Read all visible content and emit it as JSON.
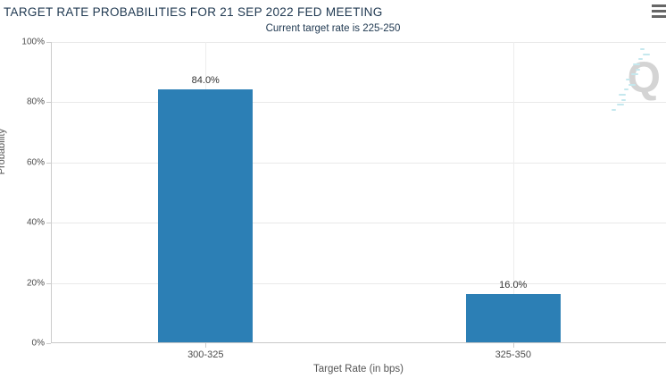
{
  "header": {
    "title": "TARGET RATE PROBABILITIES FOR 21 SEP 2022 FED MEETING",
    "subtitle": "Current target rate is 225-250"
  },
  "watermark": {
    "letter": "Q"
  },
  "theme": {
    "bar_color": "#2c7fb5",
    "title_color": "#213a52",
    "gridline_color": "#e9e9e9",
    "axis_line_color": "#cccccc"
  },
  "chart_data": {
    "type": "bar",
    "title": "TARGET RATE PROBABILITIES FOR 21 SEP 2022 FED MEETING",
    "subtitle": "Current target rate is 225-250",
    "categories": [
      "300-325",
      "325-350"
    ],
    "values": [
      84.0,
      16.0
    ],
    "value_labels": [
      "84.0%",
      "16.0%"
    ],
    "xlabel": "Target Rate (in bps)",
    "ylabel": "Probability",
    "ylim": [
      0,
      100
    ],
    "ytick_step": 20,
    "ytick_labels": [
      "0%",
      "20%",
      "40%",
      "60%",
      "80%",
      "100%"
    ],
    "grid": true,
    "legend": "none",
    "bar_color": "#2c7fb5"
  }
}
